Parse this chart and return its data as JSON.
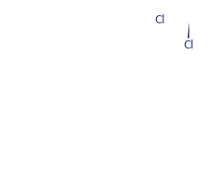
{
  "bg_color": "#ffffff",
  "line_color": "#2b3080",
  "label_color": "#2b3080",
  "font_size": 8.5,
  "line_width": 1.4,
  "fig_width": 2.34,
  "fig_height": 2.16,
  "dpi": 100
}
